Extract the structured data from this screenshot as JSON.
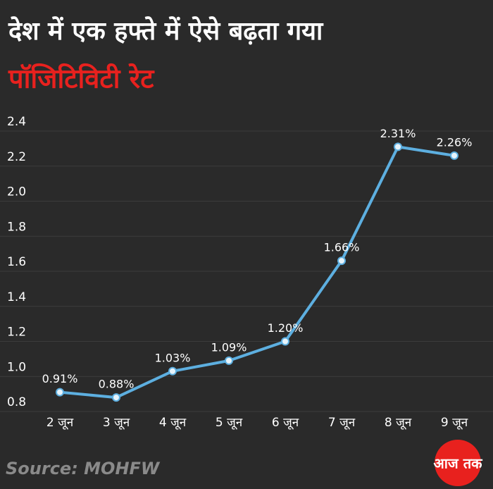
{
  "chart_data": {
    "type": "line",
    "title": "देश में एक हफ्ते में ऐसे बढ़ता गया",
    "subtitle": "पॉजिटिविटी रेट",
    "categories": [
      "2 जून",
      "3 जून",
      "4 जून",
      "5 जून",
      "6 जून",
      "7 जून",
      "8 जून",
      "9 जून"
    ],
    "values": [
      0.91,
      0.88,
      1.03,
      1.09,
      1.2,
      1.66,
      2.31,
      2.26
    ],
    "value_labels": [
      "0.91%",
      "0.88%",
      "1.03%",
      "1.09%",
      "1.20%",
      "1.66%",
      "2.31%",
      "2.26%"
    ],
    "color": "#5dafe0",
    "ylim": [
      0.8,
      2.4
    ],
    "yticks": [
      0.8,
      {
        "value": 1,
        "label": "1.0"
      },
      1.2,
      1.4,
      1.6,
      1.8,
      {
        "value": 2,
        "label": "2.0"
      },
      2.2,
      2.4
    ],
    "grid": true,
    "source": "Source: MOHFW",
    "logo": "आज तक"
  }
}
